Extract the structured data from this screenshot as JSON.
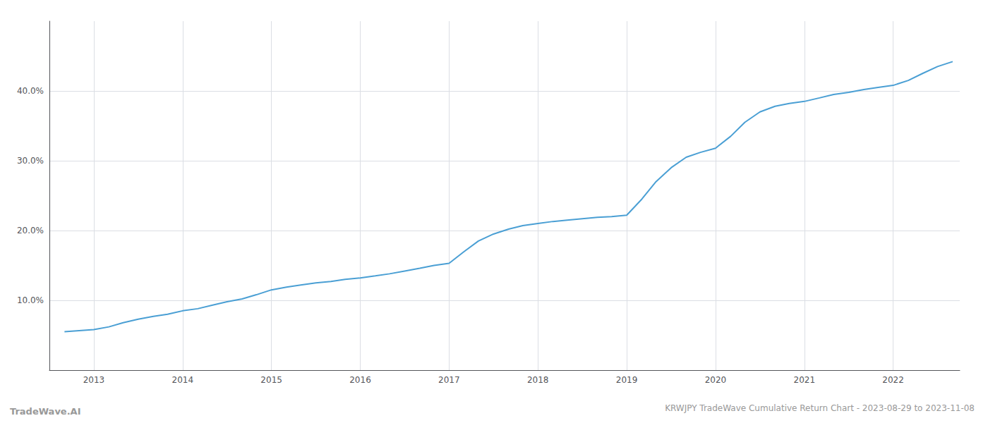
{
  "chart_data": {
    "type": "line",
    "title": "KRWJPY TradeWave Cumulative Return Chart - 2023-08-29 to 2023-11-08",
    "annotations": [
      "TradeWave.AI"
    ],
    "color": "#4a9fd4",
    "x": [
      2012.67,
      2013.0,
      2013.17,
      2013.33,
      2013.5,
      2013.67,
      2013.83,
      2014.0,
      2014.17,
      2014.33,
      2014.5,
      2014.67,
      2014.83,
      2015.0,
      2015.17,
      2015.33,
      2015.5,
      2015.67,
      2015.83,
      2016.0,
      2016.17,
      2016.33,
      2016.5,
      2016.67,
      2016.83,
      2017.0,
      2017.17,
      2017.33,
      2017.5,
      2017.67,
      2017.83,
      2018.0,
      2018.17,
      2018.33,
      2018.5,
      2018.67,
      2018.83,
      2019.0,
      2019.17,
      2019.33,
      2019.5,
      2019.67,
      2019.83,
      2020.0,
      2020.17,
      2020.33,
      2020.5,
      2020.67,
      2020.83,
      2021.0,
      2021.17,
      2021.33,
      2021.5,
      2021.67,
      2021.83,
      2022.0,
      2022.17,
      2022.33,
      2022.5,
      2022.67
    ],
    "values": [
      5.5,
      5.8,
      6.2,
      6.8,
      7.3,
      7.7,
      8.0,
      8.5,
      8.8,
      9.3,
      9.8,
      10.2,
      10.8,
      11.5,
      11.9,
      12.2,
      12.5,
      12.7,
      13.0,
      13.2,
      13.5,
      13.8,
      14.2,
      14.6,
      15.0,
      15.3,
      17.0,
      18.5,
      19.5,
      20.2,
      20.7,
      21.0,
      21.3,
      21.5,
      21.7,
      21.9,
      22.0,
      22.2,
      24.5,
      27.0,
      29.0,
      30.5,
      31.2,
      31.8,
      33.5,
      35.5,
      37.0,
      37.8,
      38.2,
      38.5,
      39.0,
      39.5,
      39.8,
      40.2,
      40.5,
      40.8,
      41.5,
      42.5,
      43.5,
      44.2
    ],
    "xlim": [
      2012.5,
      2022.75
    ],
    "xticks": [
      2013,
      2014,
      2015,
      2016,
      2017,
      2018,
      2019,
      2020,
      2021,
      2022
    ],
    "ylim": [
      0,
      50
    ],
    "yticks": [
      {
        "value": 10.0,
        "label": "10.0%"
      },
      {
        "value": 20.0,
        "label": "20.0%"
      },
      {
        "value": 30.0,
        "label": "30.0%"
      },
      {
        "value": 40.0,
        "label": "40.0%"
      }
    ],
    "grid": true
  }
}
